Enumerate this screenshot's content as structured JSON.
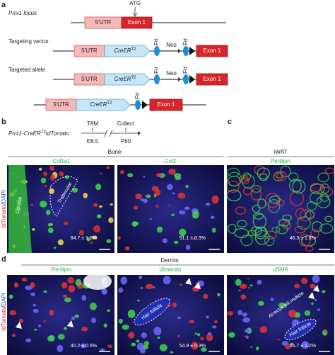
{
  "panel_labels": {
    "a": "a",
    "b": "b",
    "c": "c",
    "d": "d"
  },
  "panel_a": {
    "locus": "Prrx1 locus",
    "atg": "ATG",
    "utr": "5′UTR",
    "exon": "Exon 1",
    "cre": "CreER",
    "cre_sup": "T2",
    "frt": "Frt",
    "neo": "Neo",
    "rows": [
      "Targeting vector",
      "Targeted allele"
    ]
  },
  "panel_b": {
    "mouse": "Prrx1-CreER",
    "mouse_sup": "T2",
    "mouse_suffix": "tdTomato",
    "tam": "TAM",
    "e85": "E8.5",
    "collect": "Collect",
    "p60": "P60",
    "tissue": "Bone",
    "stain_left": "tdTomato",
    "stain_sep": "/",
    "stain_right": "DAPI",
    "images": [
      {
        "marker": "Col1a1",
        "value": "84.7 ± 1.6%",
        "notes": [
          "Cortical",
          "Trabecular"
        ]
      },
      {
        "marker": "Col2",
        "value": "51.1 ± 0.3%"
      }
    ]
  },
  "panel_c": {
    "tissue": "iWAT",
    "marker": "Perilipin",
    "value": "46.3 ± 1.8%"
  },
  "panel_d": {
    "tissue": "Dermis",
    "images": [
      {
        "marker": "Perilipin",
        "value": "40.2 ± 0.5%"
      },
      {
        "marker": "Vimentin",
        "value": "54.9 ± 0.3%",
        "notes": [
          "Hair follicle"
        ]
      },
      {
        "marker": "αSMA",
        "value": "55.7 ± 1.2%",
        "notes": [
          "Arrector pili muscle",
          "Hair follicle"
        ]
      }
    ]
  }
}
